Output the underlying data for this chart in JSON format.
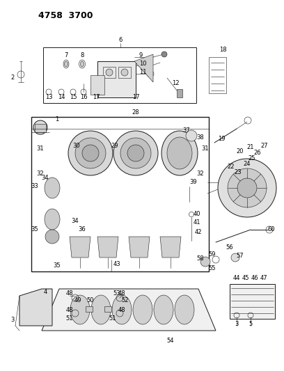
{
  "bg_color": "#ffffff",
  "line_color": "#1a1a1a",
  "fig_width": 4.08,
  "fig_height": 5.33,
  "dpi": 100,
  "title": "4758  3700"
}
